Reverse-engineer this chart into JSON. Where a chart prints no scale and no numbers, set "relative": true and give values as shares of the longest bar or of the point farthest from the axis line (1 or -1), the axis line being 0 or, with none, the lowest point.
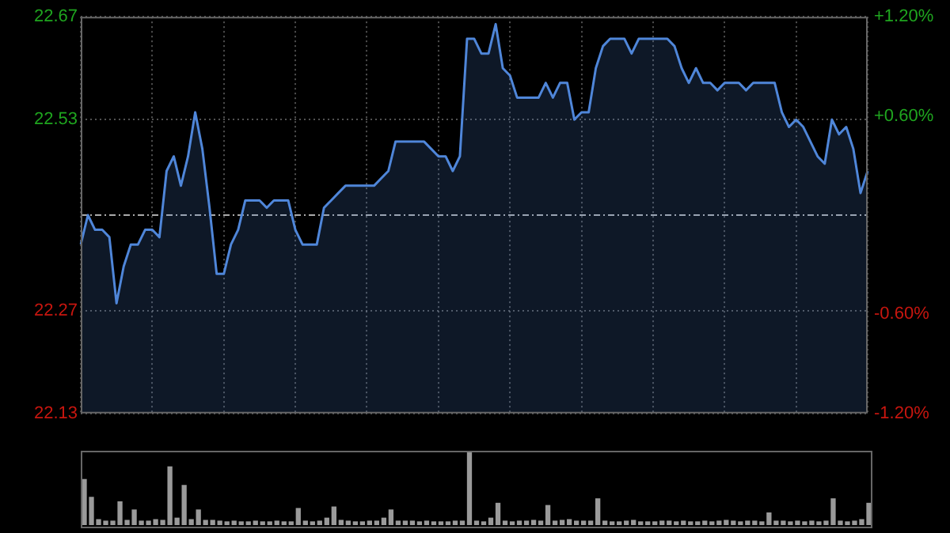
{
  "chart_data": [
    {
      "type": "area",
      "categories": [
        null,
        null,
        null,
        null,
        null,
        null,
        null,
        null,
        null,
        null,
        null,
        null,
        null,
        null,
        null,
        null,
        null,
        null,
        null,
        null,
        null,
        null,
        null,
        null,
        null,
        null,
        null,
        null,
        null,
        null,
        null,
        null,
        null,
        null,
        null,
        null,
        null,
        null,
        null,
        null,
        null,
        null,
        null,
        null,
        null,
        null,
        null,
        null,
        null,
        null,
        null,
        null,
        null,
        null,
        null,
        null,
        null,
        null,
        null,
        null,
        null,
        null,
        null,
        null,
        null,
        null,
        null,
        null,
        null,
        null,
        null,
        null,
        null,
        null,
        null,
        null,
        null,
        null,
        null,
        null,
        null,
        null,
        null,
        null,
        null,
        null,
        null,
        null,
        null,
        null,
        null,
        null,
        null,
        null,
        null,
        null,
        null,
        null,
        null,
        null,
        null,
        null,
        null,
        null,
        null,
        null,
        null,
        null,
        null,
        null,
        null
      ],
      "series": [
        {
          "color": "#4f86d9",
          "values": [
            22.36,
            22.4,
            22.38,
            22.38,
            22.37,
            22.28,
            22.33,
            22.36,
            22.36,
            22.38,
            22.38,
            22.37,
            22.46,
            22.48,
            22.44,
            22.48,
            22.54,
            22.49,
            22.41,
            22.32,
            22.32,
            22.36,
            22.38,
            22.42,
            22.42,
            22.42,
            22.41,
            22.42,
            22.42,
            22.42,
            22.38,
            22.36,
            22.36,
            22.36,
            22.41,
            22.42,
            22.43,
            22.44,
            22.44,
            22.44,
            22.44,
            22.44,
            22.45,
            22.46,
            22.5,
            22.5,
            22.5,
            22.5,
            22.5,
            22.49,
            22.48,
            22.48,
            22.46,
            22.48,
            22.64,
            22.64,
            22.62,
            22.62,
            22.66,
            22.6,
            22.59,
            22.56,
            22.56,
            22.56,
            22.56,
            22.58,
            22.56,
            22.58,
            22.58,
            22.53,
            22.54,
            22.54,
            22.6,
            22.63,
            22.64,
            22.64,
            22.64,
            22.62,
            22.64,
            22.64,
            22.64,
            22.64,
            22.64,
            22.63,
            22.6,
            22.58,
            22.6,
            22.58,
            22.58,
            22.57,
            22.58,
            22.58,
            22.58,
            22.57,
            22.58,
            22.58,
            22.58,
            22.58,
            22.54,
            22.52,
            22.53,
            22.52,
            22.5,
            22.48,
            22.47,
            22.53,
            22.51,
            22.52,
            22.49,
            22.43,
            22.46
          ]
        }
      ],
      "ylim": [
        22.13,
        22.67
      ],
      "yticks": [
        22.13,
        22.27,
        22.53,
        22.67
      ],
      "y2lim": [
        -1.2,
        1.2
      ],
      "y2ticks": [
        {
          "value": 1.2,
          "label": "+1.20%"
        },
        {
          "value": 0.6,
          "label": "+0.60%"
        },
        {
          "value": -0.6,
          "label": "-0.60%"
        },
        {
          "value": -1.2,
          "label": "-1.20%"
        }
      ],
      "ref_lines": [
        {
          "axis": "y",
          "value": 22.4,
          "label": null
        }
      ],
      "grid": true,
      "marker": "none",
      "tick_labels": "y"
    },
    {
      "type": "bar",
      "categories": [
        null,
        null,
        null,
        null,
        null,
        null,
        null,
        null,
        null,
        null,
        null,
        null,
        null,
        null,
        null,
        null,
        null,
        null,
        null,
        null,
        null,
        null,
        null,
        null,
        null,
        null,
        null,
        null,
        null,
        null,
        null,
        null,
        null,
        null,
        null,
        null,
        null,
        null,
        null,
        null,
        null,
        null,
        null,
        null,
        null,
        null,
        null,
        null,
        null,
        null,
        null,
        null,
        null,
        null,
        null,
        null,
        null,
        null,
        null,
        null,
        null,
        null,
        null,
        null,
        null,
        null,
        null,
        null,
        null,
        null,
        null,
        null,
        null,
        null,
        null,
        null,
        null,
        null,
        null,
        null,
        null,
        null,
        null,
        null,
        null,
        null,
        null,
        null,
        null,
        null,
        null,
        null,
        null,
        null,
        null,
        null,
        null,
        null,
        null,
        null,
        null,
        null,
        null,
        null,
        null,
        null,
        null,
        null,
        null,
        null,
        null
      ],
      "color": "#9a9a9a",
      "values": [
        0.62,
        0.38,
        0.08,
        0.06,
        0.06,
        0.32,
        0.07,
        0.21,
        0.06,
        0.06,
        0.08,
        0.07,
        0.79,
        0.1,
        0.54,
        0.08,
        0.21,
        0.07,
        0.07,
        0.06,
        0.05,
        0.06,
        0.05,
        0.05,
        0.06,
        0.05,
        0.05,
        0.06,
        0.05,
        0.05,
        0.23,
        0.06,
        0.05,
        0.06,
        0.1,
        0.25,
        0.07,
        0.06,
        0.05,
        0.05,
        0.06,
        0.06,
        0.1,
        0.21,
        0.06,
        0.06,
        0.06,
        0.05,
        0.06,
        0.05,
        0.05,
        0.05,
        0.06,
        0.06,
        1,
        0.06,
        0.05,
        0.1,
        0.3,
        0.06,
        0.05,
        0.06,
        0.06,
        0.07,
        0.06,
        0.27,
        0.06,
        0.07,
        0.08,
        0.06,
        0.06,
        0.06,
        0.36,
        0.06,
        0.05,
        0.05,
        0.06,
        0.07,
        0.05,
        0.05,
        0.05,
        0.06,
        0.06,
        0.05,
        0.06,
        0.05,
        0.05,
        0.06,
        0.05,
        0.06,
        0.07,
        0.06,
        0.05,
        0.06,
        0.06,
        0.05,
        0.17,
        0.06,
        0.06,
        0.05,
        0.06,
        0.05,
        0.06,
        0.05,
        0.06,
        0.36,
        0.06,
        0.05,
        0.06,
        0.08,
        0.3
      ],
      "relative": true,
      "tick_labels": false
    }
  ]
}
